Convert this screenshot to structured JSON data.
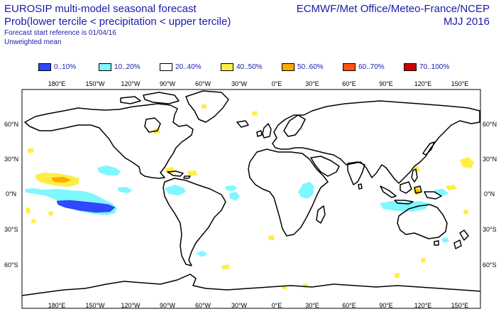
{
  "header": {
    "title": "EUROSIP multi-model seasonal forecast",
    "subtitle": "Prob(lower tercile < precipitation < upper tercile)",
    "start_reference": "Forecast start reference is 01/04/16",
    "weighting": "Unweighted mean",
    "centres": "ECMWF/Met Office/Meteo-France/NCEP",
    "period": "MJJ 2016"
  },
  "legend": [
    {
      "label": "0..10%",
      "color": "#3048ff"
    },
    {
      "label": "10..20%",
      "color": "#7ff7ff"
    },
    {
      "label": "20..40%",
      "color": "#ffffff"
    },
    {
      "label": "40..50%",
      "color": "#ffee44"
    },
    {
      "label": "50..60%",
      "color": "#ffaa00"
    },
    {
      "label": "60..70%",
      "color": "#ff5510"
    },
    {
      "label": "70..100%",
      "color": "#cc0000"
    }
  ],
  "map": {
    "lon_ticks": [
      "180°E",
      "150°W",
      "120°W",
      "90°W",
      "60°W",
      "30°W",
      "0°E",
      "30°E",
      "60°E",
      "90°E",
      "120°E",
      "150°E"
    ],
    "lat_ticks_left": [
      "60°N",
      "30°N",
      "0°N",
      "30°S",
      "60°S"
    ],
    "lat_ticks_right": [
      "60°N",
      "30°N",
      "0°N",
      "30°S",
      "60°S"
    ]
  }
}
